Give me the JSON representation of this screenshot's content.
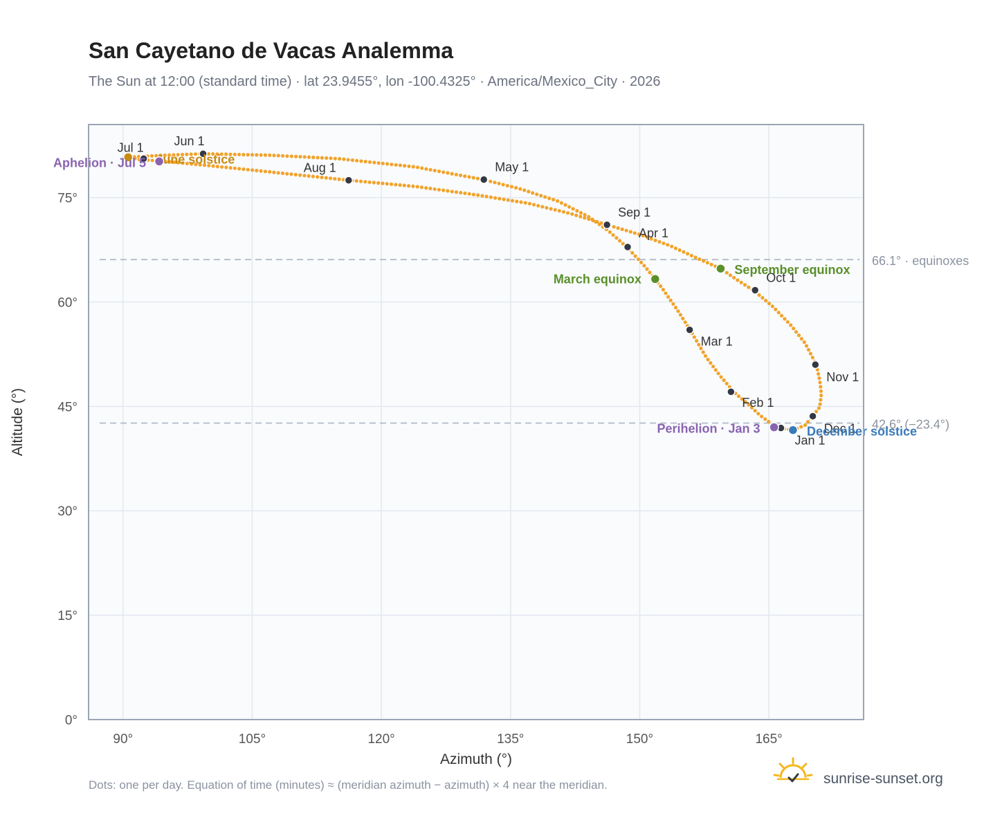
{
  "chart_data": {
    "type": "scatter",
    "title": "San Cayetano de Vacas Analemma",
    "subtitle": "The Sun at 12:00 (standard time) · lat 23.9455°, lon -100.4325° · America/Mexico_City · 2026",
    "xlabel": "Azimuth (°)",
    "ylabel": "Altitude (°)",
    "xlim": [
      86,
      176
    ],
    "ylim": [
      0,
      85.5
    ],
    "x_ticks": [
      {
        "value": 90,
        "label": "90°"
      },
      {
        "value": 105,
        "label": "105°"
      },
      {
        "value": 120,
        "label": "120°"
      },
      {
        "value": 135,
        "label": "135°"
      },
      {
        "value": 150,
        "label": "150°"
      },
      {
        "value": 165,
        "label": "165°"
      }
    ],
    "y_ticks": [
      {
        "value": 0,
        "label": "0°"
      },
      {
        "value": 15,
        "label": "15°"
      },
      {
        "value": 30,
        "label": "30°"
      },
      {
        "value": 45,
        "label": "45°"
      },
      {
        "value": 60,
        "label": "60°"
      },
      {
        "value": 75,
        "label": "75°"
      }
    ],
    "grid": true,
    "path": [
      {
        "az": 167.8,
        "alt": 41.6
      },
      {
        "az": 166.6,
        "alt": 41.8
      },
      {
        "az": 165.3,
        "alt": 42.5
      },
      {
        "az": 164.0,
        "alt": 43.7
      },
      {
        "az": 162.6,
        "alt": 45.3
      },
      {
        "az": 161.0,
        "alt": 47.0
      },
      {
        "az": 159.4,
        "alt": 49.3
      },
      {
        "az": 157.7,
        "alt": 52.1
      },
      {
        "az": 155.9,
        "alt": 55.9
      },
      {
        "az": 154.3,
        "alt": 59.0
      },
      {
        "az": 152.6,
        "alt": 62.0
      },
      {
        "az": 151.8,
        "alt": 63.3
      },
      {
        "az": 150.4,
        "alt": 65.4
      },
      {
        "az": 148.5,
        "alt": 67.9
      },
      {
        "az": 146.3,
        "alt": 70.3
      },
      {
        "az": 144.0,
        "alt": 72.3
      },
      {
        "az": 140.5,
        "alt": 74.5
      },
      {
        "az": 136.0,
        "alt": 76.3
      },
      {
        "az": 131.8,
        "alt": 77.6
      },
      {
        "az": 124.0,
        "alt": 79.4
      },
      {
        "az": 115.0,
        "alt": 80.6
      },
      {
        "az": 107.0,
        "alt": 81.1
      },
      {
        "az": 99.3,
        "alt": 81.3
      },
      {
        "az": 95.0,
        "alt": 81.1
      },
      {
        "az": 91.8,
        "alt": 80.9
      },
      {
        "az": 90.6,
        "alt": 80.8
      },
      {
        "az": 91.8,
        "alt": 80.5
      },
      {
        "az": 95.0,
        "alt": 80.2
      },
      {
        "az": 100.0,
        "alt": 79.6
      },
      {
        "az": 107.0,
        "alt": 78.7
      },
      {
        "az": 116.2,
        "alt": 77.5
      },
      {
        "az": 124.0,
        "alt": 76.6
      },
      {
        "az": 131.0,
        "alt": 75.4
      },
      {
        "az": 137.0,
        "alt": 74.2
      },
      {
        "az": 142.0,
        "alt": 72.7
      },
      {
        "az": 146.2,
        "alt": 71.1
      },
      {
        "az": 150.0,
        "alt": 69.7
      },
      {
        "az": 153.5,
        "alt": 68.1
      },
      {
        "az": 156.5,
        "alt": 66.4
      },
      {
        "az": 159.4,
        "alt": 64.8
      },
      {
        "az": 161.3,
        "alt": 63.2
      },
      {
        "az": 163.3,
        "alt": 61.6
      },
      {
        "az": 165.5,
        "alt": 59.3
      },
      {
        "az": 167.6,
        "alt": 56.6
      },
      {
        "az": 169.2,
        "alt": 54.1
      },
      {
        "az": 170.3,
        "alt": 51.5
      },
      {
        "az": 170.5,
        "alt": 51.0
      },
      {
        "az": 170.9,
        "alt": 48.8
      },
      {
        "az": 171.1,
        "alt": 46.8
      },
      {
        "az": 170.9,
        "alt": 44.9
      },
      {
        "az": 170.1,
        "alt": 43.6
      },
      {
        "az": 169.2,
        "alt": 42.3
      },
      {
        "az": 167.8,
        "alt": 41.6
      }
    ],
    "months": [
      {
        "label": "Jan 1",
        "az": 166.4,
        "alt": 41.9
      },
      {
        "label": "Feb 1",
        "az": 160.6,
        "alt": 47.1
      },
      {
        "label": "Mar 1",
        "az": 155.8,
        "alt": 56.0
      },
      {
        "label": "Apr 1",
        "az": 148.6,
        "alt": 67.9
      },
      {
        "label": "May 1",
        "az": 131.9,
        "alt": 77.6
      },
      {
        "label": "Jun 1",
        "az": 99.3,
        "alt": 81.3
      },
      {
        "label": "Jul 1",
        "az": 92.4,
        "alt": 80.6
      },
      {
        "label": "Aug 1",
        "az": 116.2,
        "alt": 77.5
      },
      {
        "label": "Sep 1",
        "az": 146.2,
        "alt": 71.1
      },
      {
        "label": "Oct 1",
        "az": 163.4,
        "alt": 61.7
      },
      {
        "label": "Nov 1",
        "az": 170.4,
        "alt": 51.0
      },
      {
        "label": "Dec 1",
        "az": 170.1,
        "alt": 43.6
      }
    ],
    "events": [
      {
        "label": "March equinox",
        "az": 151.8,
        "alt": 63.3,
        "color": "#5a8f29"
      },
      {
        "label": "September equinox",
        "az": 159.4,
        "alt": 64.8,
        "color": "#5a8f29"
      },
      {
        "label": "June solstice",
        "az": 90.6,
        "alt": 80.8,
        "color": "#c98a12"
      },
      {
        "label": "December solstice",
        "az": 167.8,
        "alt": 41.6,
        "color": "#3a7ab8"
      },
      {
        "label": "Aphelion · Jul 5",
        "az": 94.2,
        "alt": 80.2,
        "color": "#8a63b0"
      },
      {
        "label": "Perihelion · Jan 3",
        "az": 165.6,
        "alt": 42.0,
        "color": "#8a63b0"
      }
    ],
    "reference_lines": [
      {
        "alt": 66.1,
        "label": "66.1° · equinoxes"
      },
      {
        "alt": 42.6,
        "label": "42.6° (−23.4°)"
      }
    ]
  },
  "footnote": "Dots: one per day. Equation of time (minutes) ≈ (meridian azimuth − azimuth) × 4 near the meridian.",
  "brand": "sunrise-sunset.org",
  "colors": {
    "curve": "#f2a32a",
    "month_dot": "#333844",
    "plot_bg": "#f9fbfd",
    "grid": "#e3e8ee",
    "frame": "#9aa5b4",
    "ref_line": "#b8c0cc",
    "logo": "#f3b81e"
  }
}
